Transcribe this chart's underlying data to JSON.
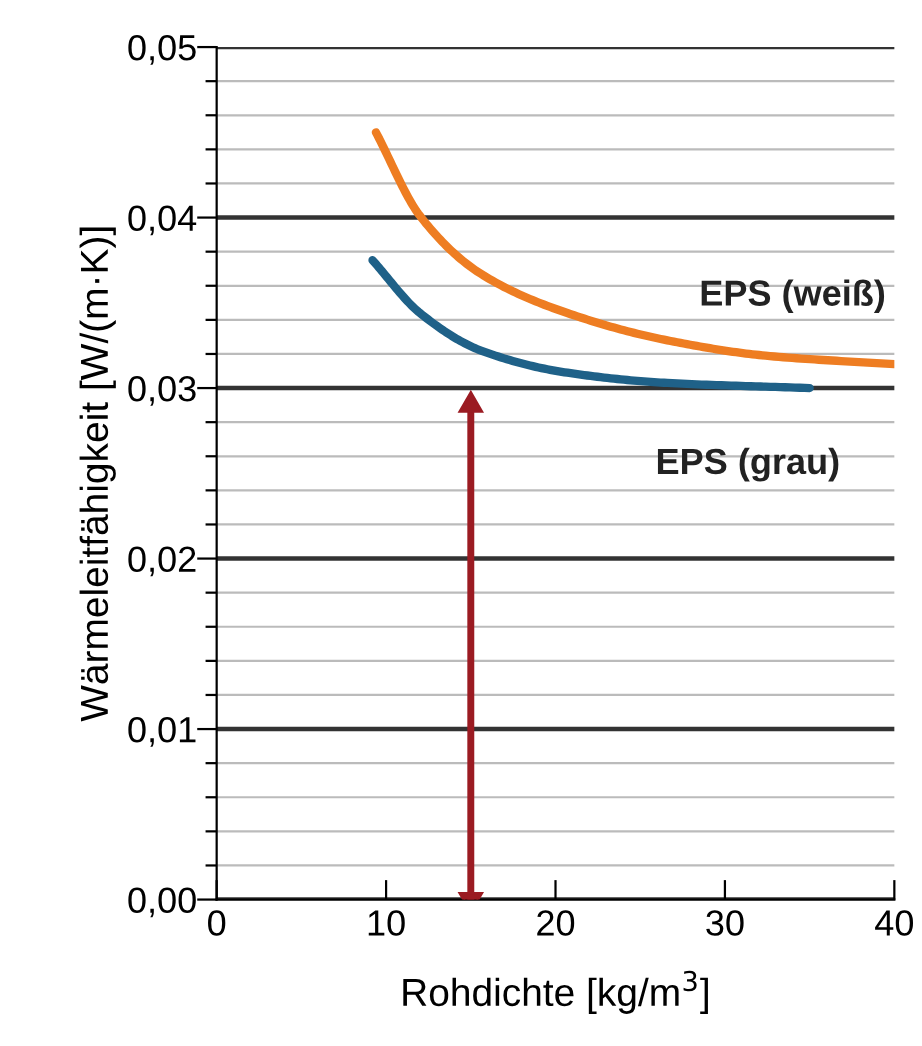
{
  "chart_data": {
    "type": "line",
    "xlabel": "Rohdichte [kg/m$^{3}$]",
    "ylabel": "Wärmeleitfähigkeit [W/(m·K)]",
    "xlim": [
      0,
      40
    ],
    "xticks": [
      0,
      10,
      20,
      30,
      40
    ],
    "ylim": [
      0,
      0.05
    ],
    "yticks": [
      {
        "value": 0,
        "label": "0,00"
      },
      {
        "value": 0.002,
        "label": null
      },
      {
        "value": 0.004,
        "label": null
      },
      {
        "value": 0.006,
        "label": null
      },
      {
        "value": 0.008,
        "label": null
      },
      {
        "value": 0.01,
        "label": "0,01"
      },
      {
        "value": 0.012,
        "label": null
      },
      {
        "value": 0.014,
        "label": null
      },
      {
        "value": 0.016,
        "label": null
      },
      {
        "value": 0.018,
        "label": null
      },
      {
        "value": 0.02,
        "label": "0,02"
      },
      {
        "value": 0.022,
        "label": null
      },
      {
        "value": 0.024,
        "label": null
      },
      {
        "value": 0.026,
        "label": null
      },
      {
        "value": 0.028,
        "label": null
      },
      {
        "value": 0.03,
        "label": "0,03"
      },
      {
        "value": 0.032,
        "label": null
      },
      {
        "value": 0.034,
        "label": null
      },
      {
        "value": 0.036,
        "label": null
      },
      {
        "value": 0.038,
        "label": null
      },
      {
        "value": 0.04,
        "label": "0,04"
      },
      {
        "value": 0.042,
        "label": null
      },
      {
        "value": 0.044,
        "label": null
      },
      {
        "value": 0.046,
        "label": null
      },
      {
        "value": 0.048,
        "label": null
      },
      {
        "value": 0.05,
        "label": "0,05"
      }
    ],
    "grid": "y",
    "series": [
      {
        "name": "EPS (weiß)",
        "color": "#ee7d22",
        "x": [
          9.4,
          12.0,
          15.6,
          20.7,
          26.6,
          32.4,
          40
        ],
        "values": [
          0.045,
          0.0401,
          0.0367,
          0.0344,
          0.0328,
          0.0319,
          0.0314
        ]
      },
      {
        "name": "EPS (grau)",
        "color": "#1f6188",
        "x": [
          9.2,
          12.0,
          15.6,
          20.7,
          26.6,
          35.0
        ],
        "values": [
          0.0375,
          0.0344,
          0.0322,
          0.0309,
          0.0303,
          0.03
        ]
      },
      {
        "type": "line",
        "marker": "triangle",
        "color": "#9b1b22",
        "x": [
          15,
          15
        ],
        "values": [
          0,
          0.029
        ]
      }
    ]
  }
}
